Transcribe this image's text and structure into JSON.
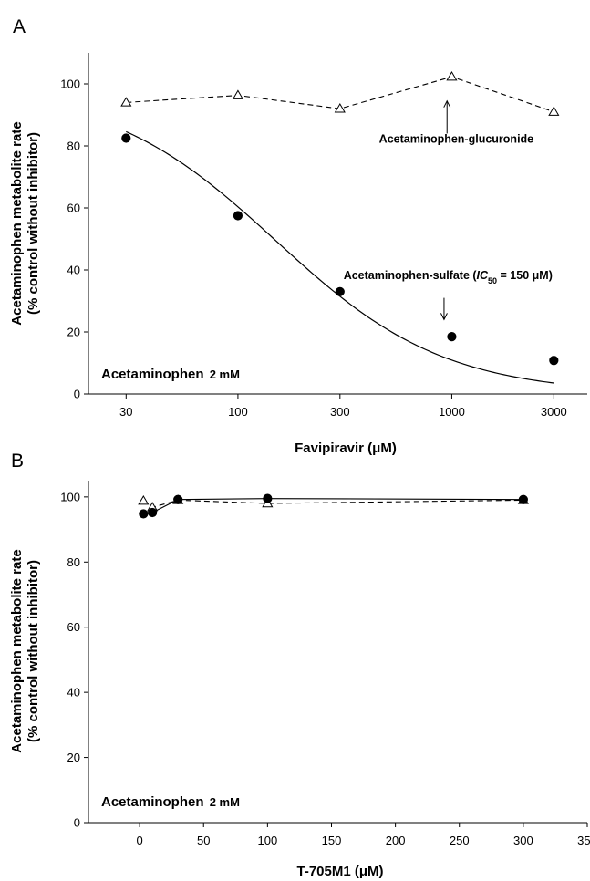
{
  "chart_data": [
    {
      "panel": "A",
      "type": "scatter",
      "xscale": "log",
      "xlabel": "Favipiravir (μM)",
      "ylabel_line1": "Acetaminophen metabolite rate",
      "ylabel_line2": "(% control without inhibitor)",
      "xlim": [
        20,
        4300
      ],
      "ylim": [
        0,
        110
      ],
      "x_ticks": [
        30,
        100,
        300,
        1000,
        3000
      ],
      "y_ticks": [
        0,
        20,
        40,
        60,
        80,
        100
      ],
      "grid": false,
      "note": {
        "main": "Acetaminophen",
        "conc": "2 mM"
      },
      "series": [
        {
          "name": "Acetaminophen-glucuronide",
          "marker": "open-triangle",
          "line": "dashed",
          "points": [
            [
              30,
              94
            ],
            [
              100,
              96.3
            ],
            [
              300,
              92
            ],
            [
              1000,
              102.3
            ],
            [
              3000,
              91
            ]
          ]
        },
        {
          "name": "Acetaminophen-sulfate",
          "marker": "filled-circle",
          "line": "fitted-curve",
          "points": [
            [
              30,
              82.5
            ],
            [
              100,
              57.5
            ],
            [
              300,
              33
            ],
            [
              1000,
              18.5
            ],
            [
              3000,
              10.8
            ]
          ],
          "fit": {
            "model": "inhibition",
            "ic50": 150,
            "hill": 1.1,
            "top": 99,
            "bottom": 0
          }
        }
      ],
      "annotations": [
        {
          "text": "Acetaminophen-glucuronide",
          "arrow_x": 950,
          "arrow_from_y": 84,
          "arrow_to_y": 94.5,
          "label_x": 1050,
          "label_y": 81
        },
        {
          "text_prefix": "Acetaminophen-sulfate (",
          "italic": "IC",
          "sub": "50",
          "text_suffix": " = 150 μM)",
          "arrow_x": 920,
          "arrow_from_y": 31,
          "arrow_to_y": 24,
          "label_x": 960,
          "label_y": 37
        }
      ]
    },
    {
      "panel": "B",
      "type": "line",
      "xlabel": "T-705M1 (μM)",
      "ylabel_line1": "Acetaminophen metabolite rate",
      "ylabel_line2": "(% control without inhibitor)",
      "xlim": [
        -40,
        350
      ],
      "ylim": [
        0,
        105
      ],
      "x_ticks": [
        0,
        50,
        100,
        150,
        200,
        250,
        300,
        350
      ],
      "y_ticks": [
        0,
        20,
        40,
        60,
        80,
        100
      ],
      "grid": false,
      "note": {
        "main": "Acetaminophen",
        "conc": "2 mM"
      },
      "series": [
        {
          "name": "",
          "marker": "open-triangle",
          "line": "dashed",
          "points": [
            [
              3,
              98.8
            ],
            [
              10,
              96.8
            ],
            [
              30,
              99
            ],
            [
              100,
              98
            ],
            [
              300,
              99
            ]
          ]
        },
        {
          "name": "",
          "marker": "filled-circle",
          "line": "solid",
          "points": [
            [
              3,
              94.8
            ],
            [
              10,
              95.2
            ],
            [
              30,
              99.2
            ],
            [
              100,
              99.5
            ],
            [
              300,
              99.2
            ]
          ]
        }
      ]
    }
  ]
}
